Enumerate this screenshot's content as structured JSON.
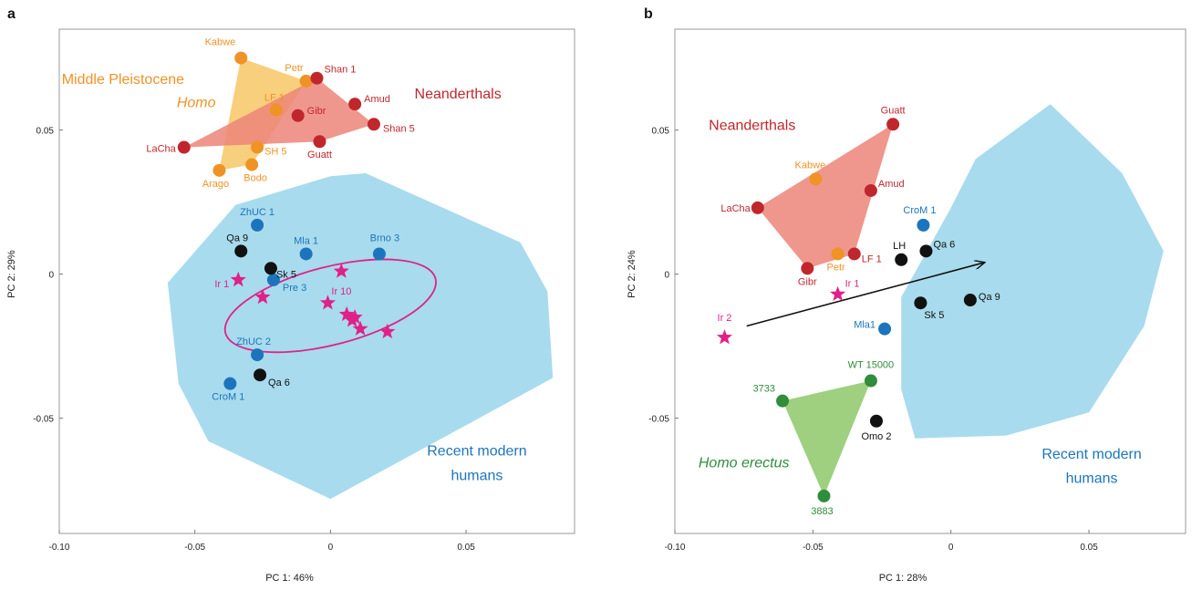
{
  "colors": {
    "neanderthal": "#c0272d",
    "neanderthal_fill": "#ec8579",
    "middle_pleistocene": "#ef9324",
    "middle_pleistocene_fill": "#f7c766",
    "modern": "#1c75bc",
    "modern_fill": "#a8dbed",
    "erectus": "#2f8d3b",
    "erectus_fill": "#8dc86a",
    "iwo_eleru": "#e0218a",
    "other": "#111111"
  },
  "chart_data": [
    {
      "panel": "a",
      "type": "scatter",
      "xlabel": "PC 1: 46%",
      "ylabel": "PC 2: 29%",
      "xlim": [
        -0.1,
        0.09
      ],
      "ylim": [
        -0.09,
        0.085
      ],
      "xticks": [
        -0.1,
        -0.05,
        0,
        0.05
      ],
      "xtick_labels": [
        "-0.10",
        "-0.05",
        "0",
        "0.05"
      ],
      "yticks": [
        -0.05,
        0,
        0.05
      ],
      "ytick_labels": [
        "-0.05",
        "0",
        "0.05"
      ],
      "group_labels": [
        {
          "text": "Middle Pleistocene",
          "color": "middle_pleistocene",
          "italic": false,
          "x": -0.0765,
          "y": 0.066
        },
        {
          "text": "Homo",
          "color": "middle_pleistocene",
          "italic": true,
          "x": -0.0495,
          "y": 0.058
        },
        {
          "text": "Neanderthals",
          "color": "neanderthal",
          "italic": false,
          "x": 0.047,
          "y": 0.061
        },
        {
          "text": "Recent modern",
          "color": "modern",
          "italic": false,
          "x": 0.054,
          "y": -0.063
        },
        {
          "text": "humans",
          "color": "modern",
          "italic": false,
          "x": 0.054,
          "y": -0.0715
        }
      ],
      "points": [
        {
          "label": "Kabwe",
          "x": -0.033,
          "y": 0.075,
          "group": "middle_pleistocene",
          "dx": -6,
          "dy": -14,
          "anchor": "end"
        },
        {
          "label": "Petr",
          "x": -0.009,
          "y": 0.067,
          "group": "middle_pleistocene",
          "dx": -3,
          "dy": -11,
          "anchor": "end"
        },
        {
          "label": "LF 1",
          "x": -0.02,
          "y": 0.057,
          "group": "middle_pleistocene",
          "dx": -2,
          "dy": -10,
          "anchor": "middle"
        },
        {
          "label": "SH 5",
          "x": -0.027,
          "y": 0.044,
          "group": "middle_pleistocene",
          "dx": 8,
          "dy": 8,
          "anchor": "start"
        },
        {
          "label": "Bodo",
          "x": -0.029,
          "y": 0.038,
          "group": "middle_pleistocene",
          "dx": 4,
          "dy": 18,
          "anchor": "middle"
        },
        {
          "label": "Arago",
          "x": -0.041,
          "y": 0.036,
          "group": "middle_pleistocene",
          "dx": -4,
          "dy": 18,
          "anchor": "middle"
        },
        {
          "label": "Shan 1",
          "x": -0.005,
          "y": 0.068,
          "group": "neanderthal",
          "dx": 8,
          "dy": -6,
          "anchor": "start"
        },
        {
          "label": "Amud",
          "x": 0.009,
          "y": 0.059,
          "group": "neanderthal",
          "dx": 10,
          "dy": -2,
          "anchor": "start"
        },
        {
          "label": "Gibr",
          "x": -0.012,
          "y": 0.055,
          "group": "neanderthal",
          "dx": 10,
          "dy": -2,
          "anchor": "start"
        },
        {
          "label": "Shan 5",
          "x": 0.016,
          "y": 0.052,
          "group": "neanderthal",
          "dx": 10,
          "dy": 8,
          "anchor": "start"
        },
        {
          "label": "Guatt",
          "x": -0.004,
          "y": 0.046,
          "group": "neanderthal",
          "dx": 0,
          "dy": 18,
          "anchor": "middle"
        },
        {
          "label": "LaCha",
          "x": -0.054,
          "y": 0.044,
          "group": "neanderthal",
          "dx": -9,
          "dy": 5,
          "anchor": "end"
        },
        {
          "label": "ZhUC 1",
          "x": -0.027,
          "y": 0.017,
          "group": "modern",
          "dx": 0,
          "dy": -11,
          "anchor": "middle"
        },
        {
          "label": "Mla 1",
          "x": -0.009,
          "y": 0.007,
          "group": "modern",
          "dx": 0,
          "dy": -11,
          "anchor": "middle"
        },
        {
          "label": "Brno 3",
          "x": 0.018,
          "y": 0.007,
          "group": "modern",
          "dx": 6,
          "dy": -14,
          "anchor": "middle"
        },
        {
          "label": "Pre 3",
          "x": -0.021,
          "y": -0.002,
          "group": "modern",
          "dx": 10,
          "dy": 12,
          "anchor": "start"
        },
        {
          "label": "ZhUC 2",
          "x": -0.027,
          "y": -0.028,
          "group": "modern",
          "dx": -4,
          "dy": -11,
          "anchor": "middle"
        },
        {
          "label": "CroM 1",
          "x": -0.037,
          "y": -0.038,
          "group": "modern",
          "dx": -2,
          "dy": 18,
          "anchor": "middle"
        },
        {
          "label": "Qa 9",
          "x": -0.033,
          "y": 0.008,
          "group": "other",
          "dx": -4,
          "dy": -11,
          "anchor": "middle"
        },
        {
          "label": "Sk 5",
          "x": -0.022,
          "y": 0.002,
          "group": "other",
          "dx": 6,
          "dy": 10,
          "anchor": "start"
        },
        {
          "label": "Qa 6",
          "x": -0.026,
          "y": -0.035,
          "group": "other",
          "dx": 9,
          "dy": 12,
          "anchor": "start"
        },
        {
          "label": "Ir 1",
          "x": -0.034,
          "y": -0.002,
          "group": "iwo_eleru",
          "marker": "star",
          "dx": -10,
          "dy": 8,
          "anchor": "end"
        },
        {
          "label": "Ir 10",
          "x": -0.001,
          "y": -0.01,
          "group": "iwo_eleru",
          "marker": "star",
          "dx": 4,
          "dy": -9,
          "anchor": "start"
        },
        {
          "label": "",
          "x": -0.025,
          "y": -0.008,
          "group": "iwo_eleru",
          "marker": "star"
        },
        {
          "label": "",
          "x": 0.004,
          "y": 0.001,
          "group": "iwo_eleru",
          "marker": "star"
        },
        {
          "label": "",
          "x": 0.006,
          "y": -0.014,
          "group": "iwo_eleru",
          "marker": "star"
        },
        {
          "label": "",
          "x": 0.008,
          "y": -0.016,
          "group": "iwo_eleru",
          "marker": "star"
        },
        {
          "label": "",
          "x": 0.009,
          "y": -0.015,
          "group": "iwo_eleru",
          "marker": "star"
        },
        {
          "label": "",
          "x": 0.011,
          "y": -0.019,
          "group": "iwo_eleru",
          "marker": "star"
        },
        {
          "label": "",
          "x": 0.021,
          "y": -0.02,
          "group": "iwo_eleru",
          "marker": "star"
        }
      ],
      "hulls": [
        {
          "group": "modern",
          "vertices": [
            [
              -0.06,
              -0.003
            ],
            [
              -0.035,
              0.024
            ],
            [
              -0.014,
              0.03
            ],
            [
              0.0,
              0.034
            ],
            [
              0.013,
              0.035
            ],
            [
              0.07,
              0.011
            ],
            [
              0.08,
              -0.006
            ],
            [
              0.082,
              -0.036
            ],
            [
              0.045,
              -0.055
            ],
            [
              0.0,
              -0.078
            ],
            [
              -0.045,
              -0.058
            ],
            [
              -0.056,
              -0.038
            ]
          ]
        },
        {
          "group": "middle_pleistocene",
          "vertices": [
            [
              -0.033,
              0.075
            ],
            [
              -0.009,
              0.067
            ],
            [
              -0.029,
              0.038
            ],
            [
              -0.041,
              0.036
            ]
          ]
        },
        {
          "group": "neanderthal",
          "vertices": [
            [
              -0.054,
              0.044
            ],
            [
              -0.005,
              0.068
            ],
            [
              0.016,
              0.052
            ],
            [
              -0.004,
              0.046
            ]
          ]
        }
      ],
      "ellipse": {
        "cx": 0.0,
        "cy": -0.011,
        "rx": 0.04,
        "ry": 0.0135,
        "angle_deg": -14.5,
        "group": "iwo_eleru"
      }
    },
    {
      "panel": "b",
      "type": "scatter",
      "xlabel": "PC 1: 28%",
      "ylabel": "PC 2: 24%",
      "xlim": [
        -0.1,
        0.085
      ],
      "ylim": [
        -0.09,
        0.085
      ],
      "xticks": [
        -0.1,
        -0.05,
        0,
        0.05
      ],
      "xtick_labels": [
        "-0.10",
        "-0.05",
        "0",
        "0.05"
      ],
      "yticks": [
        -0.05,
        0,
        0.05
      ],
      "ytick_labels": [
        "-0.05",
        "0",
        "0.05"
      ],
      "group_labels": [
        {
          "text": "Neanderthals",
          "color": "neanderthal",
          "italic": false,
          "x": -0.072,
          "y": 0.05
        },
        {
          "text": "Homo erectus",
          "color": "erectus",
          "italic": true,
          "x": -0.075,
          "y": -0.067
        },
        {
          "text": "Recent modern",
          "color": "modern",
          "italic": false,
          "x": 0.051,
          "y": -0.064
        },
        {
          "text": "humans",
          "color": "modern",
          "italic": false,
          "x": 0.051,
          "y": -0.0725
        }
      ],
      "points": [
        {
          "label": "Guatt",
          "x": -0.021,
          "y": 0.052,
          "group": "neanderthal",
          "dx": 0,
          "dy": -12,
          "anchor": "middle"
        },
        {
          "label": "Amud",
          "x": -0.029,
          "y": 0.029,
          "group": "neanderthal",
          "dx": 8,
          "dy": -4,
          "anchor": "start"
        },
        {
          "label": "LaCha",
          "x": -0.07,
          "y": 0.023,
          "group": "neanderthal",
          "dx": -8,
          "dy": 4,
          "anchor": "end"
        },
        {
          "label": "Gibr",
          "x": -0.052,
          "y": 0.002,
          "group": "neanderthal",
          "dx": 0,
          "dy": 18,
          "anchor": "middle"
        },
        {
          "label": "LF 1",
          "x": -0.035,
          "y": 0.007,
          "group": "neanderthal",
          "dx": 8,
          "dy": 9,
          "anchor": "start"
        },
        {
          "label": "Kabwe",
          "x": -0.049,
          "y": 0.033,
          "group": "middle_pleistocene",
          "dx": -6,
          "dy": -12,
          "anchor": "middle"
        },
        {
          "label": "Petr",
          "x": -0.041,
          "y": 0.007,
          "group": "middle_pleistocene",
          "dx": -2,
          "dy": 18,
          "anchor": "middle"
        },
        {
          "label": "CroM 1",
          "x": -0.01,
          "y": 0.017,
          "group": "modern",
          "dx": -4,
          "dy": -13,
          "anchor": "middle"
        },
        {
          "label": "Mla1",
          "x": -0.024,
          "y": -0.019,
          "group": "modern",
          "dx": -10,
          "dy": -1,
          "anchor": "end"
        },
        {
          "label": "LH",
          "x": -0.018,
          "y": 0.005,
          "group": "other",
          "dx": -2,
          "dy": -12,
          "anchor": "middle"
        },
        {
          "label": "Qa 6",
          "x": -0.009,
          "y": 0.008,
          "group": "other",
          "dx": 8,
          "dy": -4,
          "anchor": "start"
        },
        {
          "label": "Sk 5",
          "x": -0.011,
          "y": -0.01,
          "group": "other",
          "dx": 4,
          "dy": 17,
          "anchor": "start"
        },
        {
          "label": "Qa 9",
          "x": 0.007,
          "y": -0.009,
          "group": "other",
          "dx": 9,
          "dy": 0,
          "anchor": "start"
        },
        {
          "label": "Omo 2",
          "x": -0.027,
          "y": -0.051,
          "group": "other",
          "dx": 0,
          "dy": 20,
          "anchor": "middle"
        },
        {
          "label": "WT 15000",
          "x": -0.029,
          "y": -0.037,
          "group": "erectus",
          "dx": 0,
          "dy": -14,
          "anchor": "middle"
        },
        {
          "label": "3733",
          "x": -0.061,
          "y": -0.044,
          "group": "erectus",
          "dx": -8,
          "dy": -10,
          "anchor": "end"
        },
        {
          "label": "3883",
          "x": -0.046,
          "y": -0.077,
          "group": "erectus",
          "dx": -2,
          "dy": 20,
          "anchor": "middle"
        },
        {
          "label": "Ir 1",
          "x": -0.041,
          "y": -0.007,
          "group": "iwo_eleru",
          "marker": "star",
          "dx": 8,
          "dy": -8,
          "anchor": "start"
        },
        {
          "label": "Ir 2",
          "x": -0.082,
          "y": -0.022,
          "group": "iwo_eleru",
          "marker": "star",
          "dx": 0,
          "dy": -18,
          "anchor": "middle"
        }
      ],
      "hulls": [
        {
          "group": "modern",
          "vertices": [
            [
              -0.018,
              -0.008
            ],
            [
              0.0,
              0.023
            ],
            [
              0.009,
              0.04
            ],
            [
              0.036,
              0.059
            ],
            [
              0.062,
              0.035
            ],
            [
              0.077,
              0.008
            ],
            [
              0.07,
              -0.018
            ],
            [
              0.05,
              -0.048
            ],
            [
              0.02,
              -0.056
            ],
            [
              -0.013,
              -0.057
            ],
            [
              -0.018,
              -0.04
            ]
          ]
        },
        {
          "group": "neanderthal",
          "vertices": [
            [
              -0.07,
              0.023
            ],
            [
              -0.021,
              0.052
            ],
            [
              -0.035,
              0.007
            ],
            [
              -0.052,
              0.002
            ]
          ]
        },
        {
          "group": "erectus",
          "vertices": [
            [
              -0.061,
              -0.044
            ],
            [
              -0.029,
              -0.037
            ],
            [
              -0.046,
              -0.077
            ]
          ]
        }
      ],
      "arrow": {
        "x1": -0.074,
        "y1": -0.018,
        "x2": 0.012,
        "y2": 0.004
      }
    }
  ]
}
